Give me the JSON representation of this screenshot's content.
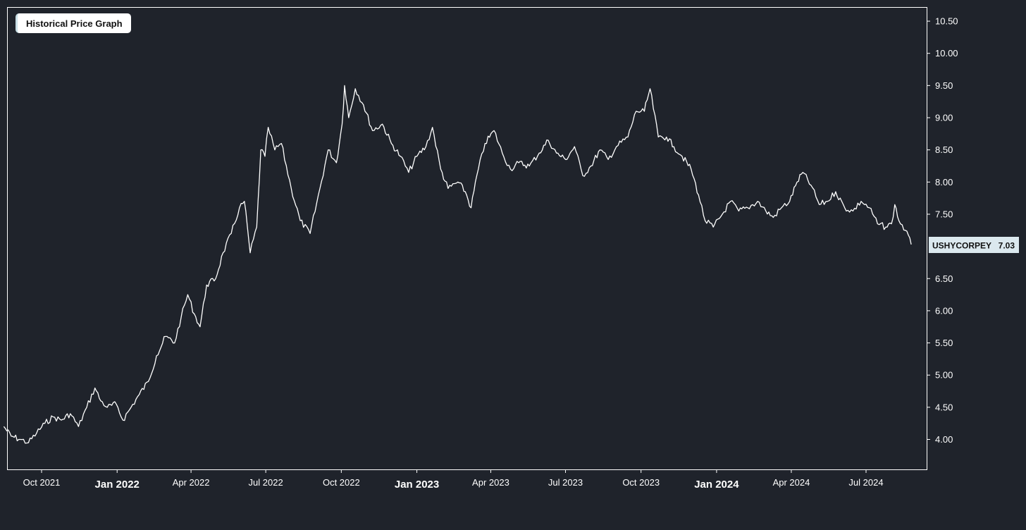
{
  "chart_data": {
    "type": "line",
    "title": "Historical Price Graph",
    "xlabel": "",
    "ylabel": "",
    "ylim": [
      3.5,
      10.7
    ],
    "xlim": [
      "2021-08-16",
      "2024-09-20"
    ],
    "grid": false,
    "y_ticks": [
      "4.00",
      "4.50",
      "5.00",
      "5.50",
      "6.00",
      "6.50",
      "7.50",
      "8.00",
      "8.50",
      "9.00",
      "9.50",
      "10.00",
      "10.50"
    ],
    "x_ticks": [
      {
        "date": "2021-10-01",
        "label": "Oct 2021",
        "major": false
      },
      {
        "date": "2022-01-01",
        "label": "Jan 2022",
        "major": true
      },
      {
        "date": "2022-04-01",
        "label": "Apr 2022",
        "major": false
      },
      {
        "date": "2022-07-01",
        "label": "Jul 2022",
        "major": false
      },
      {
        "date": "2022-10-01",
        "label": "Oct 2022",
        "major": false
      },
      {
        "date": "2023-01-01",
        "label": "Jan 2023",
        "major": true
      },
      {
        "date": "2023-04-01",
        "label": "Apr 2023",
        "major": false
      },
      {
        "date": "2023-07-01",
        "label": "Jul 2023",
        "major": false
      },
      {
        "date": "2023-10-01",
        "label": "Oct 2023",
        "major": false
      },
      {
        "date": "2024-01-01",
        "label": "Jan 2024",
        "major": true
      },
      {
        "date": "2024-04-01",
        "label": "Apr 2024",
        "major": false
      },
      {
        "date": "2024-07-01",
        "label": "Jul 2024",
        "major": false
      }
    ],
    "series": [
      {
        "name": "USHYCORPEY",
        "color": "#ffffff",
        "last_value": "7.03",
        "points": [
          [
            "2021-08-16",
            4.2
          ],
          [
            "2021-08-25",
            4.05
          ],
          [
            "2021-09-05",
            4.0
          ],
          [
            "2021-09-15",
            3.95
          ],
          [
            "2021-09-25",
            4.1
          ],
          [
            "2021-10-05",
            4.25
          ],
          [
            "2021-10-15",
            4.35
          ],
          [
            "2021-10-25",
            4.3
          ],
          [
            "2021-11-05",
            4.4
          ],
          [
            "2021-11-15",
            4.2
          ],
          [
            "2021-11-25",
            4.5
          ],
          [
            "2021-12-05",
            4.8
          ],
          [
            "2021-12-12",
            4.6
          ],
          [
            "2021-12-20",
            4.5
          ],
          [
            "2021-12-31",
            4.55
          ],
          [
            "2022-01-08",
            4.3
          ],
          [
            "2022-01-18",
            4.5
          ],
          [
            "2022-01-28",
            4.7
          ],
          [
            "2022-02-08",
            4.9
          ],
          [
            "2022-02-18",
            5.3
          ],
          [
            "2022-03-01",
            5.6
          ],
          [
            "2022-03-12",
            5.5
          ],
          [
            "2022-03-20",
            5.9
          ],
          [
            "2022-03-28",
            6.25
          ],
          [
            "2022-04-05",
            5.95
          ],
          [
            "2022-04-12",
            5.75
          ],
          [
            "2022-04-20",
            6.4
          ],
          [
            "2022-05-01",
            6.5
          ],
          [
            "2022-05-10",
            6.9
          ],
          [
            "2022-05-20",
            7.2
          ],
          [
            "2022-05-30",
            7.6
          ],
          [
            "2022-06-05",
            7.7
          ],
          [
            "2022-06-12",
            6.9
          ],
          [
            "2022-06-20",
            7.3
          ],
          [
            "2022-06-25",
            8.5
          ],
          [
            "2022-06-30",
            8.4
          ],
          [
            "2022-07-04",
            8.85
          ],
          [
            "2022-07-12",
            8.5
          ],
          [
            "2022-07-20",
            8.6
          ],
          [
            "2022-08-01",
            7.9
          ],
          [
            "2022-08-12",
            7.4
          ],
          [
            "2022-08-24",
            7.2
          ],
          [
            "2022-09-05",
            7.9
          ],
          [
            "2022-09-15",
            8.5
          ],
          [
            "2022-09-25",
            8.3
          ],
          [
            "2022-10-02",
            8.9
          ],
          [
            "2022-10-05",
            9.5
          ],
          [
            "2022-10-10",
            9.0
          ],
          [
            "2022-10-18",
            9.45
          ],
          [
            "2022-10-28",
            9.2
          ],
          [
            "2022-11-08",
            8.8
          ],
          [
            "2022-11-20",
            8.9
          ],
          [
            "2022-12-01",
            8.6
          ],
          [
            "2022-12-12",
            8.4
          ],
          [
            "2022-12-22",
            8.15
          ],
          [
            "2023-01-01",
            8.4
          ],
          [
            "2023-01-12",
            8.55
          ],
          [
            "2023-01-20",
            8.85
          ],
          [
            "2023-01-30",
            8.2
          ],
          [
            "2023-02-08",
            7.9
          ],
          [
            "2023-02-20",
            8.0
          ],
          [
            "2023-03-01",
            7.85
          ],
          [
            "2023-03-08",
            7.6
          ],
          [
            "2023-03-15",
            8.1
          ],
          [
            "2023-03-25",
            8.6
          ],
          [
            "2023-04-05",
            8.8
          ],
          [
            "2023-04-15",
            8.45
          ],
          [
            "2023-04-25",
            8.2
          ],
          [
            "2023-05-05",
            8.3
          ],
          [
            "2023-05-18",
            8.25
          ],
          [
            "2023-05-30",
            8.45
          ],
          [
            "2023-06-10",
            8.65
          ],
          [
            "2023-06-20",
            8.45
          ],
          [
            "2023-07-01",
            8.35
          ],
          [
            "2023-07-12",
            8.55
          ],
          [
            "2023-07-22",
            8.1
          ],
          [
            "2023-08-01",
            8.25
          ],
          [
            "2023-08-12",
            8.5
          ],
          [
            "2023-08-22",
            8.35
          ],
          [
            "2023-09-01",
            8.55
          ],
          [
            "2023-09-15",
            8.7
          ],
          [
            "2023-09-25",
            9.1
          ],
          [
            "2023-10-05",
            9.1
          ],
          [
            "2023-10-12",
            9.45
          ],
          [
            "2023-10-22",
            8.7
          ],
          [
            "2023-11-01",
            8.7
          ],
          [
            "2023-11-10",
            8.55
          ],
          [
            "2023-11-20",
            8.4
          ],
          [
            "2023-12-01",
            8.2
          ],
          [
            "2023-12-10",
            7.8
          ],
          [
            "2023-12-18",
            7.4
          ],
          [
            "2023-12-28",
            7.3
          ],
          [
            "2024-01-08",
            7.5
          ],
          [
            "2024-01-18",
            7.7
          ],
          [
            "2024-01-28",
            7.55
          ],
          [
            "2024-02-08",
            7.6
          ],
          [
            "2024-02-20",
            7.7
          ],
          [
            "2024-03-01",
            7.55
          ],
          [
            "2024-03-10",
            7.45
          ],
          [
            "2024-03-20",
            7.6
          ],
          [
            "2024-03-30",
            7.7
          ],
          [
            "2024-04-08",
            8.0
          ],
          [
            "2024-04-15",
            8.15
          ],
          [
            "2024-04-25",
            7.95
          ],
          [
            "2024-05-05",
            7.65
          ],
          [
            "2024-05-15",
            7.7
          ],
          [
            "2024-05-25",
            7.85
          ],
          [
            "2024-06-05",
            7.6
          ],
          [
            "2024-06-15",
            7.55
          ],
          [
            "2024-06-25",
            7.7
          ],
          [
            "2024-07-05",
            7.6
          ],
          [
            "2024-07-15",
            7.35
          ],
          [
            "2024-07-25",
            7.3
          ],
          [
            "2024-08-01",
            7.35
          ],
          [
            "2024-08-05",
            7.65
          ],
          [
            "2024-08-10",
            7.4
          ],
          [
            "2024-08-18",
            7.25
          ],
          [
            "2024-08-25",
            7.03
          ]
        ]
      }
    ]
  }
}
